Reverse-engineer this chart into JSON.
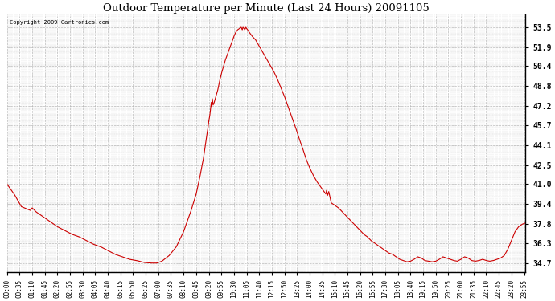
{
  "title": "Outdoor Temperature per Minute (Last 24 Hours) 20091105",
  "copyright_text": "Copyright 2009 Cartronics.com",
  "line_color": "#cc0000",
  "bg_color": "#ffffff",
  "plot_bg_color": "#ffffff",
  "grid_color": "#aaaaaa",
  "grid_style": "--",
  "yticks": [
    34.7,
    36.3,
    37.8,
    39.4,
    41.0,
    42.5,
    44.1,
    45.7,
    47.2,
    48.8,
    50.4,
    51.9,
    53.5
  ],
  "ylim": [
    34.0,
    54.5
  ],
  "xtick_labels": [
    "00:00",
    "00:35",
    "01:10",
    "01:45",
    "02:20",
    "02:55",
    "03:30",
    "04:05",
    "04:40",
    "05:15",
    "05:50",
    "06:25",
    "07:00",
    "07:35",
    "08:10",
    "08:45",
    "09:20",
    "09:55",
    "10:30",
    "11:05",
    "11:40",
    "12:15",
    "12:50",
    "13:25",
    "14:00",
    "14:35",
    "15:10",
    "15:45",
    "16:20",
    "16:55",
    "17:30",
    "18:05",
    "18:40",
    "19:15",
    "19:50",
    "20:25",
    "21:00",
    "21:35",
    "22:10",
    "22:45",
    "23:20",
    "23:55"
  ],
  "keypoints": [
    [
      0,
      41.0
    ],
    [
      20,
      40.2
    ],
    [
      40,
      39.2
    ],
    [
      65,
      38.9
    ],
    [
      70,
      39.1
    ],
    [
      80,
      38.8
    ],
    [
      100,
      38.4
    ],
    [
      120,
      38.0
    ],
    [
      140,
      37.6
    ],
    [
      160,
      37.3
    ],
    [
      180,
      37.0
    ],
    [
      200,
      36.8
    ],
    [
      220,
      36.5
    ],
    [
      240,
      36.2
    ],
    [
      260,
      36.0
    ],
    [
      280,
      35.7
    ],
    [
      300,
      35.4
    ],
    [
      320,
      35.2
    ],
    [
      340,
      35.0
    ],
    [
      360,
      34.9
    ],
    [
      380,
      34.75
    ],
    [
      400,
      34.7
    ],
    [
      415,
      34.7
    ],
    [
      430,
      34.85
    ],
    [
      450,
      35.3
    ],
    [
      470,
      36.0
    ],
    [
      490,
      37.2
    ],
    [
      510,
      38.8
    ],
    [
      525,
      40.2
    ],
    [
      535,
      41.5
    ],
    [
      540,
      42.3
    ],
    [
      545,
      43.0
    ],
    [
      550,
      44.0
    ],
    [
      555,
      45.0
    ],
    [
      558,
      45.5
    ],
    [
      560,
      46.0
    ],
    [
      563,
      46.5
    ],
    [
      565,
      47.0
    ],
    [
      567,
      47.5
    ],
    [
      568,
      47.2
    ],
    [
      570,
      47.8
    ],
    [
      572,
      47.3
    ],
    [
      575,
      47.5
    ],
    [
      580,
      48.0
    ],
    [
      585,
      48.5
    ],
    [
      590,
      49.2
    ],
    [
      595,
      49.8
    ],
    [
      600,
      50.3
    ],
    [
      605,
      50.8
    ],
    [
      610,
      51.2
    ],
    [
      615,
      51.6
    ],
    [
      620,
      52.0
    ],
    [
      625,
      52.4
    ],
    [
      630,
      52.8
    ],
    [
      635,
      53.1
    ],
    [
      640,
      53.3
    ],
    [
      645,
      53.4
    ],
    [
      650,
      53.5
    ],
    [
      653,
      53.3
    ],
    [
      655,
      53.5
    ],
    [
      658,
      53.4
    ],
    [
      660,
      53.3
    ],
    [
      663,
      53.5
    ],
    [
      665,
      53.4
    ],
    [
      668,
      53.3
    ],
    [
      670,
      53.2
    ],
    [
      675,
      53.0
    ],
    [
      680,
      52.8
    ],
    [
      690,
      52.5
    ],
    [
      700,
      52.0
    ],
    [
      710,
      51.5
    ],
    [
      720,
      51.0
    ],
    [
      730,
      50.5
    ],
    [
      740,
      50.0
    ],
    [
      750,
      49.4
    ],
    [
      760,
      48.7
    ],
    [
      770,
      48.0
    ],
    [
      780,
      47.2
    ],
    [
      790,
      46.4
    ],
    [
      800,
      45.6
    ],
    [
      810,
      44.7
    ],
    [
      820,
      43.9
    ],
    [
      830,
      43.0
    ],
    [
      840,
      42.3
    ],
    [
      850,
      41.7
    ],
    [
      860,
      41.2
    ],
    [
      870,
      40.8
    ],
    [
      880,
      40.4
    ],
    [
      885,
      40.2
    ],
    [
      887,
      40.5
    ],
    [
      890,
      40.1
    ],
    [
      893,
      40.4
    ],
    [
      896,
      40.0
    ],
    [
      900,
      39.5
    ],
    [
      910,
      39.3
    ],
    [
      920,
      39.1
    ],
    [
      930,
      38.8
    ],
    [
      940,
      38.5
    ],
    [
      950,
      38.2
    ],
    [
      960,
      37.9
    ],
    [
      970,
      37.6
    ],
    [
      980,
      37.3
    ],
    [
      990,
      37.0
    ],
    [
      1000,
      36.8
    ],
    [
      1010,
      36.5
    ],
    [
      1020,
      36.3
    ],
    [
      1030,
      36.1
    ],
    [
      1040,
      35.9
    ],
    [
      1050,
      35.7
    ],
    [
      1060,
      35.5
    ],
    [
      1070,
      35.4
    ],
    [
      1080,
      35.2
    ],
    [
      1090,
      35.0
    ],
    [
      1100,
      34.9
    ],
    [
      1110,
      34.8
    ],
    [
      1120,
      34.85
    ],
    [
      1130,
      35.0
    ],
    [
      1140,
      35.2
    ],
    [
      1150,
      35.1
    ],
    [
      1160,
      34.9
    ],
    [
      1170,
      34.85
    ],
    [
      1180,
      34.8
    ],
    [
      1190,
      34.85
    ],
    [
      1200,
      35.0
    ],
    [
      1210,
      35.2
    ],
    [
      1220,
      35.1
    ],
    [
      1230,
      35.0
    ],
    [
      1240,
      34.9
    ],
    [
      1250,
      34.85
    ],
    [
      1260,
      35.0
    ],
    [
      1270,
      35.2
    ],
    [
      1280,
      35.1
    ],
    [
      1285,
      35.0
    ],
    [
      1290,
      34.9
    ],
    [
      1300,
      34.85
    ],
    [
      1310,
      34.9
    ],
    [
      1320,
      35.0
    ],
    [
      1330,
      34.9
    ],
    [
      1340,
      34.85
    ],
    [
      1350,
      34.9
    ],
    [
      1360,
      35.0
    ],
    [
      1370,
      35.1
    ],
    [
      1380,
      35.3
    ],
    [
      1390,
      35.8
    ],
    [
      1400,
      36.5
    ],
    [
      1410,
      37.2
    ],
    [
      1420,
      37.6
    ],
    [
      1430,
      37.8
    ],
    [
      1439,
      37.9
    ]
  ]
}
